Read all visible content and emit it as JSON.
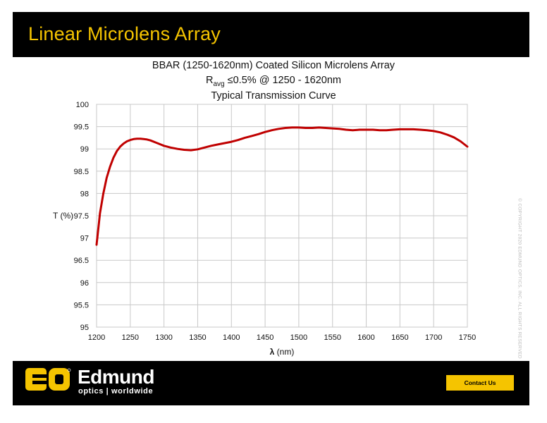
{
  "header": {
    "title": "Linear Microlens Array"
  },
  "chart_titles": {
    "line1": "BBAR (1250-1620nm) Coated Silicon Microlens Array",
    "line2_prefix": "R",
    "line2_sub": "avg",
    "line2_suffix": " ≤0.5% @ 1250 - 1620nm",
    "line3": "Typical Transmission Curve"
  },
  "chart_data": {
    "type": "line",
    "title": "BBAR (1250-1620nm) Coated Silicon Microlens Array",
    "subtitle": "Typical Transmission Curve",
    "xlabel_symbol": "λ",
    "xlabel_unit": "(nm)",
    "ylabel": "T (%)",
    "xlim": [
      1200,
      1750
    ],
    "ylim": [
      95,
      100
    ],
    "x_ticks": [
      "1200",
      "1250",
      "1300",
      "1350",
      "1400",
      "1450",
      "1500",
      "1550",
      "1600",
      "1650",
      "1700",
      "1750"
    ],
    "y_ticks": [
      "95",
      "95.5",
      "96",
      "96.5",
      "97",
      "97.5",
      "98",
      "98.5",
      "99",
      "99.5",
      "100"
    ],
    "grid": true,
    "series": [
      {
        "color": "#c00000",
        "x": [
          1200,
          1205,
          1210,
          1215,
          1220,
          1225,
          1230,
          1235,
          1240,
          1245,
          1250,
          1255,
          1260,
          1265,
          1270,
          1275,
          1280,
          1290,
          1300,
          1310,
          1320,
          1330,
          1340,
          1350,
          1360,
          1370,
          1380,
          1390,
          1400,
          1410,
          1420,
          1430,
          1440,
          1450,
          1460,
          1470,
          1480,
          1490,
          1500,
          1510,
          1520,
          1530,
          1540,
          1550,
          1560,
          1570,
          1580,
          1590,
          1600,
          1610,
          1620,
          1630,
          1640,
          1650,
          1660,
          1670,
          1680,
          1690,
          1700,
          1710,
          1720,
          1730,
          1740,
          1750
        ],
        "y": [
          96.85,
          97.55,
          98.0,
          98.35,
          98.6,
          98.8,
          98.95,
          99.05,
          99.12,
          99.17,
          99.2,
          99.22,
          99.23,
          99.23,
          99.22,
          99.21,
          99.19,
          99.13,
          99.07,
          99.03,
          99.0,
          98.98,
          98.97,
          98.99,
          99.03,
          99.07,
          99.1,
          99.13,
          99.16,
          99.2,
          99.25,
          99.29,
          99.33,
          99.38,
          99.42,
          99.45,
          99.47,
          99.48,
          99.48,
          99.47,
          99.47,
          99.48,
          99.47,
          99.46,
          99.45,
          99.43,
          99.42,
          99.43,
          99.43,
          99.43,
          99.42,
          99.42,
          99.43,
          99.44,
          99.44,
          99.44,
          99.43,
          99.42,
          99.4,
          99.37,
          99.32,
          99.26,
          99.17,
          99.05
        ]
      }
    ]
  },
  "copyright": "© COPYRIGHT 2020 EDMUND OPTICS, INC. ALL RIGHTS RESERVED",
  "footer": {
    "logo_text": "EO",
    "brand_name": "Edmund",
    "brand_tagline": "optics | worldwide",
    "contact_label": "Contact Us"
  },
  "colors": {
    "brand_yellow": "#f5c400",
    "curve": "#c00000",
    "bar": "#000000"
  }
}
